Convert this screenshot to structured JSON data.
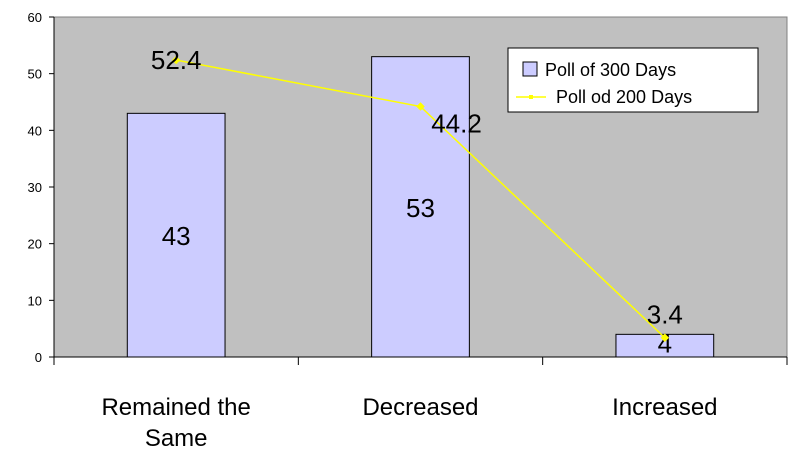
{
  "chart_data": {
    "type": "bar",
    "categories": [
      "Remained the Same",
      "Decreased",
      "Increased"
    ],
    "category_lines": [
      [
        "Remained the",
        "Same"
      ],
      [
        "Decreased"
      ],
      [
        "Increased"
      ]
    ],
    "series": [
      {
        "name": "Poll of 300 Days",
        "kind": "bar",
        "values": [
          43,
          53,
          4
        ],
        "labels": [
          "43",
          "53",
          "4"
        ],
        "color": "#CCCCFF"
      },
      {
        "name": "Poll od 200 Days",
        "kind": "line",
        "values": [
          52.4,
          44.2,
          3.4
        ],
        "labels": [
          "52.4",
          "44.2",
          "3.4"
        ],
        "color": "#FFFF00"
      }
    ],
    "ylim": [
      0,
      60
    ],
    "yticks": [
      "0",
      "10",
      "20",
      "30",
      "40",
      "50",
      "60"
    ],
    "plot_background": "#C0C0C0",
    "legend_position": "top-right",
    "grid": false
  }
}
